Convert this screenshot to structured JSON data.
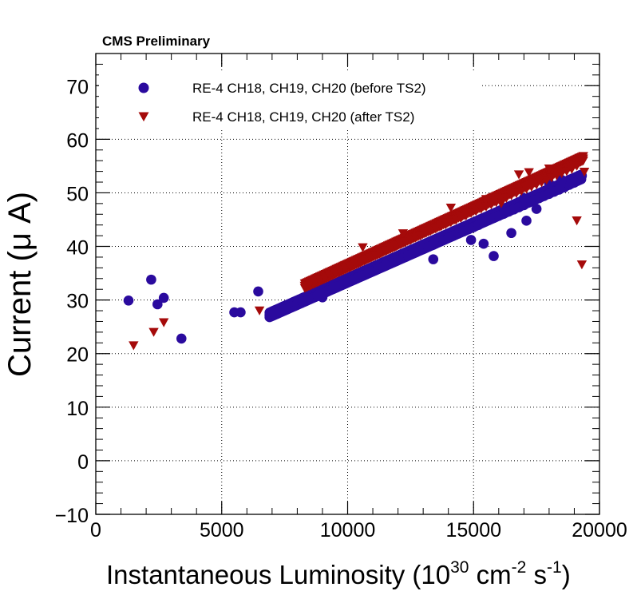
{
  "chart_data": {
    "type": "scatter",
    "header": "CMS Preliminary",
    "xlabel": {
      "main": "Instantaneous Luminosity (10",
      "sup1": "30",
      "mid": " cm",
      "sup2": "-2",
      "mid2": " s",
      "sup3": "-1",
      "end": ")"
    },
    "ylabel": "Current (μ A)",
    "xlim": [
      0,
      20000
    ],
    "ylim": [
      -10,
      76
    ],
    "xticks": [
      0,
      5000,
      10000,
      15000,
      20000
    ],
    "yticks": [
      -10,
      0,
      10,
      20,
      30,
      40,
      50,
      60,
      70
    ],
    "xtick_labels": [
      "0",
      "5000",
      "10000",
      "15000",
      "20000"
    ],
    "ytick_labels": [
      "−10",
      "0",
      "10",
      "20",
      "30",
      "40",
      "50",
      "60",
      "70"
    ],
    "grid": true,
    "legend_position": "top-left",
    "series": [
      {
        "name": "RE-4 CH18, CH19, CH20 (before TS2)",
        "marker": "circle",
        "color": "#2a0a9e",
        "band": {
          "x_start": 6900,
          "x_end": 19300,
          "y_start": 27.2,
          "y_end": 53.0,
          "slope": 0.00208
        },
        "points": [
          [
            1300,
            29.9
          ],
          [
            2200,
            33.8
          ],
          [
            2450,
            29.2
          ],
          [
            2700,
            30.4
          ],
          [
            3400,
            22.8
          ],
          [
            5500,
            27.7
          ],
          [
            5750,
            27.7
          ],
          [
            6450,
            31.6
          ],
          [
            6900,
            27.2
          ],
          [
            7100,
            27.4
          ],
          [
            7300,
            27.8
          ],
          [
            7500,
            28.2
          ],
          [
            7700,
            28.6
          ],
          [
            7900,
            28.9
          ],
          [
            8000,
            29.2
          ],
          [
            8200,
            29.6
          ],
          [
            8400,
            30.0
          ],
          [
            8600,
            30.4
          ],
          [
            8800,
            30.9
          ],
          [
            9000,
            31.3
          ],
          [
            9200,
            31.7
          ],
          [
            9400,
            32.1
          ],
          [
            9600,
            32.5
          ],
          [
            9800,
            32.9
          ],
          [
            10000,
            33.3
          ],
          [
            10200,
            33.8
          ],
          [
            10400,
            34.2
          ],
          [
            10600,
            34.6
          ],
          [
            10800,
            35.0
          ],
          [
            11000,
            35.4
          ],
          [
            11200,
            35.8
          ],
          [
            11400,
            36.2
          ],
          [
            11600,
            36.6
          ],
          [
            11800,
            37.1
          ],
          [
            12000,
            37.5
          ],
          [
            12200,
            37.9
          ],
          [
            12400,
            38.3
          ],
          [
            12600,
            38.7
          ],
          [
            12800,
            39.1
          ],
          [
            13000,
            39.5
          ],
          [
            13200,
            39.9
          ],
          [
            13400,
            40.3
          ],
          [
            13600,
            40.8
          ],
          [
            13800,
            41.2
          ],
          [
            14000,
            41.6
          ],
          [
            14200,
            42.0
          ],
          [
            14400,
            42.4
          ],
          [
            14600,
            42.8
          ],
          [
            14800,
            43.2
          ],
          [
            15000,
            43.6
          ],
          [
            15200,
            44.0
          ],
          [
            15400,
            44.5
          ],
          [
            15600,
            44.9
          ],
          [
            15800,
            45.3
          ],
          [
            16000,
            45.7
          ],
          [
            16200,
            46.1
          ],
          [
            16400,
            46.5
          ],
          [
            16600,
            46.9
          ],
          [
            16800,
            47.3
          ],
          [
            17000,
            47.7
          ],
          [
            17200,
            48.2
          ],
          [
            17400,
            48.6
          ],
          [
            17600,
            49.0
          ],
          [
            17800,
            49.4
          ],
          [
            18000,
            49.8
          ],
          [
            18200,
            50.2
          ],
          [
            18400,
            50.6
          ],
          [
            18600,
            51.0
          ],
          [
            18800,
            51.5
          ],
          [
            19000,
            51.9
          ],
          [
            19200,
            52.6
          ],
          [
            19300,
            53.2
          ],
          [
            9000,
            30.5
          ],
          [
            11500,
            36.5
          ],
          [
            13400,
            37.6
          ],
          [
            14200,
            45.4
          ],
          [
            14600,
            46.0
          ],
          [
            14900,
            41.2
          ],
          [
            15400,
            40.5
          ],
          [
            15800,
            38.2
          ],
          [
            16500,
            42.5
          ],
          [
            17100,
            44.8
          ],
          [
            17500,
            47.0
          ],
          [
            17000,
            49.0
          ],
          [
            18000,
            51.8
          ],
          [
            18500,
            52.4
          ]
        ]
      },
      {
        "name": "RE-4 CH18, CH19, CH20 (after TS2)",
        "marker": "triangle-down",
        "color": "#a50a0a",
        "band": {
          "x_start": 8300,
          "x_end": 19400,
          "y_start": 32.6,
          "y_end": 56.4,
          "slope": 0.00215
        },
        "points": [
          [
            1500,
            21.5
          ],
          [
            2300,
            24.0
          ],
          [
            2700,
            25.8
          ],
          [
            6500,
            28.0
          ],
          [
            8300,
            32.6
          ],
          [
            8500,
            33.0
          ],
          [
            8700,
            33.4
          ],
          [
            8900,
            33.8
          ],
          [
            9100,
            34.2
          ],
          [
            9300,
            34.6
          ],
          [
            9500,
            35.0
          ],
          [
            9700,
            35.5
          ],
          [
            9900,
            35.9
          ],
          [
            10100,
            36.3
          ],
          [
            10300,
            36.7
          ],
          [
            10500,
            37.1
          ],
          [
            10700,
            37.5
          ],
          [
            10900,
            37.9
          ],
          [
            11100,
            38.3
          ],
          [
            11300,
            38.7
          ],
          [
            11500,
            39.2
          ],
          [
            11700,
            39.6
          ],
          [
            11900,
            40.0
          ],
          [
            12100,
            40.4
          ],
          [
            12300,
            40.8
          ],
          [
            12500,
            41.2
          ],
          [
            12700,
            41.6
          ],
          [
            12900,
            42.0
          ],
          [
            13100,
            42.5
          ],
          [
            13300,
            42.9
          ],
          [
            13500,
            43.3
          ],
          [
            13700,
            43.7
          ],
          [
            13900,
            44.1
          ],
          [
            14100,
            44.5
          ],
          [
            14300,
            44.9
          ],
          [
            14500,
            45.3
          ],
          [
            14700,
            45.7
          ],
          [
            14900,
            46.2
          ],
          [
            15100,
            46.6
          ],
          [
            15300,
            47.0
          ],
          [
            15500,
            47.4
          ],
          [
            15700,
            47.8
          ],
          [
            15900,
            48.2
          ],
          [
            16100,
            48.6
          ],
          [
            16300,
            49.0
          ],
          [
            16500,
            49.5
          ],
          [
            16700,
            49.9
          ],
          [
            16900,
            50.3
          ],
          [
            17100,
            50.7
          ],
          [
            17300,
            51.1
          ],
          [
            17500,
            51.5
          ],
          [
            17700,
            51.9
          ],
          [
            17900,
            52.4
          ],
          [
            18100,
            52.8
          ],
          [
            18300,
            53.2
          ],
          [
            18500,
            53.6
          ],
          [
            18700,
            54.0
          ],
          [
            18900,
            54.4
          ],
          [
            19100,
            55.0
          ],
          [
            19300,
            56.2
          ],
          [
            10600,
            39.8
          ],
          [
            12200,
            42.4
          ],
          [
            14100,
            47.2
          ],
          [
            15500,
            48.8
          ],
          [
            16800,
            53.4
          ],
          [
            17200,
            53.8
          ],
          [
            17600,
            52.3
          ],
          [
            19100,
            44.8
          ],
          [
            19300,
            36.6
          ],
          [
            19400,
            53.9
          ],
          [
            16100,
            48.0
          ],
          [
            18000,
            54.5
          ]
        ]
      }
    ]
  }
}
